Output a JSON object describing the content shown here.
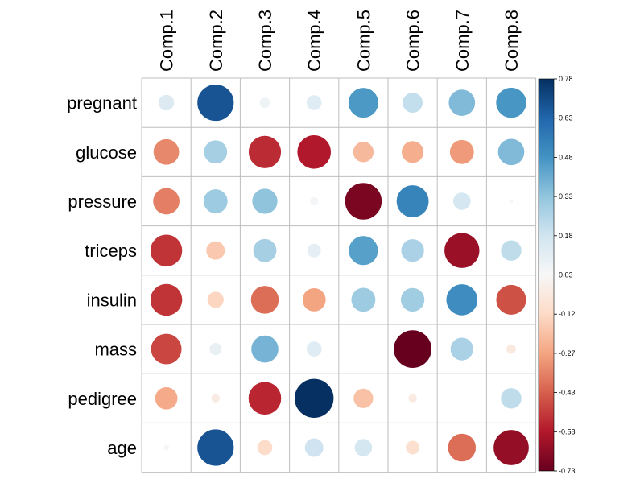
{
  "chart_data": {
    "type": "heatmap",
    "style": "correlation-circles",
    "columns": [
      "Comp.1",
      "Comp.2",
      "Comp.3",
      "Comp.4",
      "Comp.5",
      "Comp.6",
      "Comp.7",
      "Comp.8"
    ],
    "rows": [
      "pregnant",
      "glucose",
      "pressure",
      "triceps",
      "insulin",
      "mass",
      "pedigree",
      "age"
    ],
    "values": [
      [
        0.13,
        0.68,
        0.06,
        0.12,
        0.46,
        0.21,
        0.36,
        0.47
      ],
      [
        -0.34,
        0.28,
        -0.54,
        -0.58,
        -0.22,
        -0.25,
        -0.3,
        0.36
      ],
      [
        -0.36,
        0.3,
        0.33,
        0.04,
        -0.69,
        0.53,
        0.16,
        0.01
      ],
      [
        -0.52,
        -0.18,
        0.28,
        0.1,
        0.44,
        0.27,
        -0.63,
        0.22
      ],
      [
        -0.52,
        -0.14,
        -0.4,
        -0.28,
        0.3,
        0.29,
        0.5,
        -0.46
      ],
      [
        -0.48,
        0.08,
        0.38,
        0.12,
        0.0,
        -0.73,
        0.27,
        -0.05
      ],
      [
        -0.26,
        -0.04,
        -0.55,
        0.78,
        -0.2,
        -0.04,
        0.0,
        0.22
      ],
      [
        0.02,
        0.68,
        -0.12,
        0.18,
        0.16,
        -0.1,
        -0.4,
        -0.64
      ]
    ],
    "colorbar": {
      "range": [
        -0.73,
        0.78
      ],
      "ticks": [
        "0.78",
        "0.63",
        "0.48",
        "0.33",
        "0.18",
        "0.03",
        "-0.12",
        "-0.27",
        "-0.43",
        "-0.58",
        "-0.73"
      ]
    },
    "colors": {
      "negative_end": "#67001f",
      "negative_mid": "#d6604d",
      "neutral": "#f7f7f7",
      "positive_mid": "#4393c3",
      "positive_end": "#053061",
      "grid": "#bebebe"
    }
  }
}
